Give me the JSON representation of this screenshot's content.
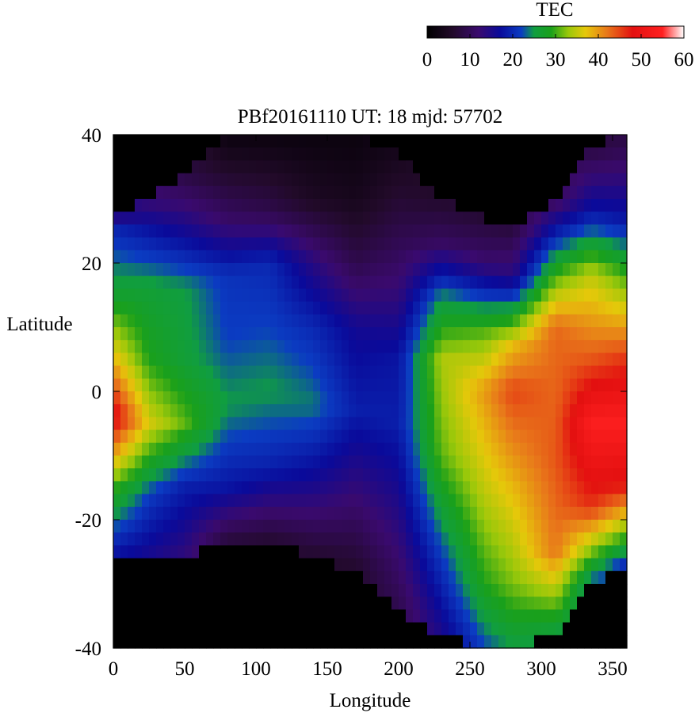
{
  "chart_data": {
    "type": "heatmap",
    "title": "PBf20161110  UT: 18  mjd: 57702",
    "xlabel": "Longitude",
    "ylabel": "Latitude",
    "xlim": [
      0,
      360
    ],
    "ylim": [
      -40,
      40
    ],
    "x_ticks": [
      "0",
      "50",
      "100",
      "150",
      "200",
      "250",
      "300",
      "350"
    ],
    "y_ticks": [
      "40",
      "20",
      "0",
      "-20",
      "-40"
    ],
    "grid": false,
    "cell_size_deg": {
      "lon": 5,
      "lat": 2
    },
    "colorbar": {
      "label": "TEC",
      "range": [
        0,
        60
      ],
      "ticks": [
        "0",
        "10",
        "20",
        "30",
        "40",
        "50",
        "60"
      ],
      "position": "top-right",
      "colormap": [
        {
          "v": 0,
          "color": "#000000"
        },
        {
          "v": 6,
          "color": "#220a2a"
        },
        {
          "v": 12,
          "color": "#3a0a6e"
        },
        {
          "v": 17,
          "color": "#0a0a9a"
        },
        {
          "v": 22,
          "color": "#0b3cc2"
        },
        {
          "v": 25,
          "color": "#109e40"
        },
        {
          "v": 29,
          "color": "#1aa01a"
        },
        {
          "v": 33,
          "color": "#9ac80a"
        },
        {
          "v": 37,
          "color": "#e6c80a"
        },
        {
          "v": 42,
          "color": "#e8781a"
        },
        {
          "v": 48,
          "color": "#e31010"
        },
        {
          "v": 55,
          "color": "#ff2020"
        },
        {
          "v": 60,
          "color": "#ffffff"
        }
      ]
    },
    "profiles": [
      {
        "lon": 0,
        "lat_range": [
          -26,
          27
        ],
        "points": [
          [
            -26,
            17
          ],
          [
            -15,
            30
          ],
          [
            -4,
            50
          ],
          [
            6,
            37
          ],
          [
            15,
            27
          ],
          [
            25,
            20
          ],
          [
            27,
            15
          ]
        ]
      },
      {
        "lon": 25,
        "lat_range": [
          -25,
          30
        ],
        "points": [
          [
            -25,
            16
          ],
          [
            -16,
            22
          ],
          [
            -5,
            36
          ],
          [
            5,
            29
          ],
          [
            16,
            26
          ],
          [
            25,
            18
          ],
          [
            30,
            12
          ]
        ]
      },
      {
        "lon": 50,
        "lat_range": [
          -26,
          34
        ],
        "points": [
          [
            -26,
            13
          ],
          [
            -15,
            19
          ],
          [
            -5,
            31
          ],
          [
            5,
            26
          ],
          [
            16,
            25
          ],
          [
            26,
            15
          ],
          [
            34,
            8
          ]
        ]
      },
      {
        "lon": 80,
        "lat_range": [
          -23,
          40
        ],
        "points": [
          [
            -23,
            8
          ],
          [
            -15,
            18
          ],
          [
            -2,
            25
          ],
          [
            8,
            22
          ],
          [
            18,
            21
          ],
          [
            27,
            11
          ],
          [
            40,
            2
          ]
        ]
      },
      {
        "lon": 110,
        "lat_range": [
          -23,
          40
        ],
        "points": [
          [
            -23,
            7
          ],
          [
            -12,
            19
          ],
          [
            0,
            25
          ],
          [
            10,
            22
          ],
          [
            20,
            20
          ],
          [
            28,
            9
          ],
          [
            40,
            2
          ]
        ]
      },
      {
        "lon": 140,
        "lat_range": [
          -26,
          40
        ],
        "points": [
          [
            -26,
            6
          ],
          [
            -14,
            16
          ],
          [
            -2,
            24
          ],
          [
            10,
            20
          ],
          [
            20,
            14
          ],
          [
            30,
            5
          ],
          [
            40,
            2
          ]
        ]
      },
      {
        "lon": 170,
        "lat_range": [
          -28,
          40
        ],
        "points": [
          [
            -28,
            6
          ],
          [
            -15,
            13
          ],
          [
            -3,
            19
          ],
          [
            10,
            16
          ],
          [
            20,
            9
          ],
          [
            30,
            4
          ],
          [
            40,
            2
          ]
        ]
      },
      {
        "lon": 200,
        "lat_range": [
          -34,
          37
        ],
        "points": [
          [
            -34,
            9
          ],
          [
            -20,
            14
          ],
          [
            -5,
            19
          ],
          [
            5,
            18
          ],
          [
            15,
            13
          ],
          [
            27,
            8
          ],
          [
            37,
            4
          ]
        ]
      },
      {
        "lon": 230,
        "lat_range": [
          -38,
          30
        ],
        "points": [
          [
            -38,
            15
          ],
          [
            -25,
            22
          ],
          [
            -10,
            31
          ],
          [
            5,
            34
          ],
          [
            15,
            24
          ],
          [
            23,
            11
          ],
          [
            30,
            6
          ]
        ]
      },
      {
        "lon": 260,
        "lat_range": [
          -40,
          27
        ],
        "points": [
          [
            -40,
            22
          ],
          [
            -30,
            29
          ],
          [
            -15,
            35
          ],
          [
            0,
            40
          ],
          [
            10,
            30
          ],
          [
            20,
            12
          ],
          [
            27,
            7
          ]
        ]
      },
      {
        "lon": 280,
        "lat_range": [
          -40,
          25
        ],
        "points": [
          [
            -40,
            25
          ],
          [
            -30,
            32
          ],
          [
            -15,
            38
          ],
          [
            0,
            45
          ],
          [
            7,
            38
          ],
          [
            18,
            14
          ],
          [
            25,
            8
          ]
        ]
      },
      {
        "lon": 310,
        "lat_range": [
          -38,
          30
        ],
        "points": [
          [
            -38,
            25
          ],
          [
            -25,
            42
          ],
          [
            -10,
            44
          ],
          [
            0,
            43
          ],
          [
            10,
            43
          ],
          [
            20,
            27
          ],
          [
            30,
            10
          ]
        ]
      },
      {
        "lon": 335,
        "lat_range": [
          -30,
          38
        ],
        "points": [
          [
            -30,
            22
          ],
          [
            -18,
            46
          ],
          [
            -5,
            54
          ],
          [
            5,
            44
          ],
          [
            18,
            35
          ],
          [
            28,
            18
          ],
          [
            38,
            8
          ]
        ]
      },
      {
        "lon": 360,
        "lat_range": [
          -27,
          40
        ],
        "points": [
          [
            -27,
            20
          ],
          [
            -15,
            47
          ],
          [
            -5,
            54
          ],
          [
            5,
            46
          ],
          [
            18,
            30
          ],
          [
            27,
            18
          ],
          [
            40,
            8
          ]
        ]
      }
    ]
  }
}
